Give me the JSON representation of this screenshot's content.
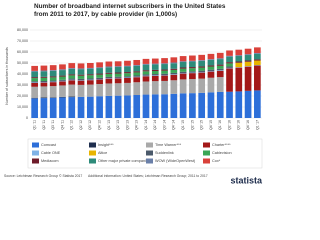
{
  "chart_data": {
    "type": "stacked_bar",
    "title": "Number of broadband internet subscribers in the United States from 2011 to 2017, by cable provider (in 1,000s)",
    "y_label": "Number of subscribers in thousands",
    "categories": [
      "Q1 '11",
      "Q2 '11",
      "Q3 '11",
      "Q4 '11",
      "Q1 '12",
      "Q2 '12",
      "Q3 '12",
      "Q4 '12",
      "Q1 '13",
      "Q2 '13",
      "Q3 '13",
      "Q4 '13",
      "Q1 '14",
      "Q2 '14",
      "Q3 '14",
      "Q4 '14",
      "Q1 '15",
      "Q2 '15",
      "Q3 '15",
      "Q4 '15",
      "Q1 '16",
      "Q2 '16",
      "Q3 '16",
      "Q4 '16",
      "Q1 '17"
    ],
    "ylim": [
      0,
      80000
    ],
    "yticks": [
      0,
      {
        "value": 10000,
        "label": "10,000"
      },
      {
        "value": 20000,
        "label": "20,000"
      },
      {
        "value": 30000,
        "label": "30,000"
      },
      {
        "value": 40000,
        "label": "40,000"
      },
      {
        "value": 50000,
        "label": "50,000"
      },
      {
        "value": 60000,
        "label": "60,000"
      },
      {
        "value": 70000,
        "label": "70,000"
      },
      {
        "value": 80000,
        "label": "80,000"
      }
    ],
    "grid": true,
    "series": [
      {
        "name": "Comcast",
        "color": "#2d6fd9",
        "values": [
          17900,
          18100,
          18300,
          18700,
          19000,
          19200,
          19400,
          19800,
          20100,
          20300,
          20500,
          20900,
          21300,
          21500,
          21600,
          22000,
          22400,
          22600,
          22900,
          23300,
          23700,
          23900,
          24200,
          24700,
          25100
        ]
      },
      {
        "name": "Insight***",
        "color": "#1f2f4f",
        "values": [
          500,
          500,
          500,
          500,
          500,
          null,
          null,
          null,
          null,
          null,
          null,
          null,
          null,
          null,
          null,
          null,
          null,
          null,
          null,
          null,
          null,
          null,
          null,
          null,
          null
        ]
      },
      {
        "name": "Time Warner***",
        "color": "#a9a9a9",
        "values": [
          10000,
          10100,
          10200,
          10400,
          10900,
          10900,
          11000,
          11100,
          11300,
          11300,
          11400,
          11600,
          11900,
          12000,
          12100,
          12300,
          12700,
          12800,
          12900,
          13300,
          13500,
          null,
          null,
          null,
          null
        ]
      },
      {
        "name": "Charter****",
        "color": "#a31818",
        "values": [
          3500,
          3500,
          3600,
          3700,
          3900,
          3900,
          4000,
          4100,
          4400,
          4400,
          4500,
          4600,
          4800,
          4800,
          4900,
          5000,
          5300,
          5400,
          5500,
          5600,
          5700,
          21200,
          21600,
          22000,
          22600
        ]
      },
      {
        "name": "Cable ONE",
        "color": "#7fb2e6",
        "values": [
          450,
          450,
          450,
          450,
          450,
          450,
          450,
          450,
          450,
          450,
          450,
          450,
          450,
          450,
          450,
          450,
          450,
          450,
          450,
          450,
          450,
          450,
          450,
          450,
          450
        ]
      },
      {
        "name": "Altice",
        "color": "#e8b400",
        "values": [
          null,
          null,
          null,
          null,
          null,
          null,
          null,
          null,
          null,
          null,
          null,
          null,
          null,
          null,
          null,
          null,
          null,
          null,
          null,
          null,
          null,
          null,
          4000,
          4000,
          4100
        ]
      },
      {
        "name": "Suddenlink",
        "color": "#4b5a6b",
        "values": [
          1000,
          1000,
          1000,
          1000,
          1100,
          1100,
          1100,
          1100,
          1100,
          1100,
          1100,
          1100,
          1200,
          1200,
          1200,
          1200,
          1200,
          1200,
          1300,
          1300,
          1300,
          1300,
          null,
          null,
          null
        ]
      },
      {
        "name": "Cablevision",
        "color": "#3aa655",
        "values": [
          2900,
          2900,
          2900,
          2900,
          2900,
          2900,
          2900,
          2900,
          2800,
          2800,
          2800,
          2800,
          2800,
          2800,
          2800,
          2800,
          2800,
          2800,
          2800,
          2800,
          2800,
          2800,
          null,
          null,
          null
        ]
      },
      {
        "name": "Mediacom",
        "color": "#6e1b2a",
        "values": [
          900,
          900,
          900,
          900,
          950,
          950,
          950,
          950,
          1000,
          1000,
          1000,
          1000,
          1000,
          1000,
          1000,
          1000,
          1050,
          1050,
          1050,
          1050,
          1100,
          1100,
          1100,
          1100,
          1100
        ]
      },
      {
        "name": "Other major private companies**",
        "color": "#2e8b7a",
        "values": [
          5000,
          5000,
          5000,
          5000,
          5000,
          5000,
          5000,
          5000,
          5000,
          5000,
          5000,
          5000,
          5000,
          5000,
          5000,
          5000,
          5000,
          5000,
          5000,
          5000,
          5000,
          5000,
          5000,
          5000,
          5000
        ]
      },
      {
        "name": "WOW (WideOpenWest)",
        "color": "#6a7fa8",
        "values": [
          700,
          700,
          700,
          700,
          700,
          700,
          700,
          700,
          700,
          700,
          700,
          700,
          700,
          700,
          700,
          700,
          700,
          700,
          700,
          700,
          750,
          750,
          750,
          750,
          750
        ]
      },
      {
        "name": "Cox*",
        "color": "#d9413a",
        "values": [
          4500,
          4500,
          4500,
          4500,
          4500,
          4500,
          4500,
          4500,
          4500,
          4500,
          4600,
          4600,
          4600,
          4600,
          4700,
          4700,
          4700,
          4800,
          4800,
          4800,
          4900,
          4900,
          5000,
          5000,
          5100
        ]
      }
    ],
    "source": "Source: Leichtman Research Group © Statista 2017",
    "additional_info": "Additional information: United States; Leichtman Research Group; 2011 to 2017",
    "logo": "statista"
  }
}
